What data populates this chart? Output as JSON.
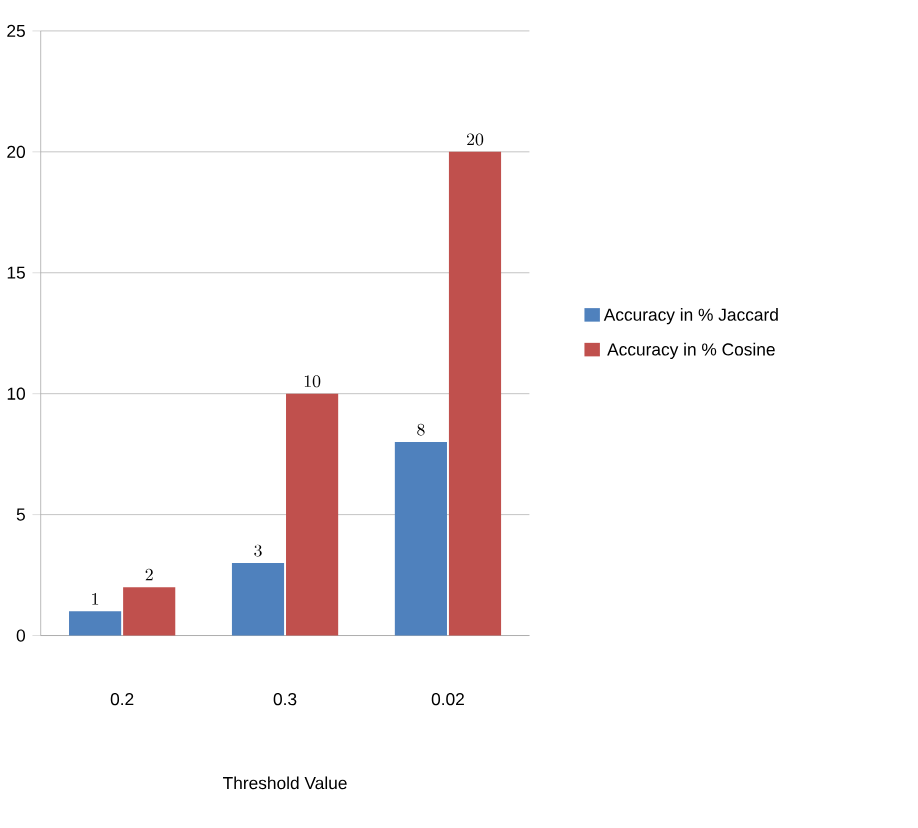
{
  "chart_data": {
    "type": "bar",
    "xlabel": "Threshold Value",
    "categories": [
      "0.2",
      "0.3",
      "0.02"
    ],
    "series": [
      {
        "name": "Accuracy in % Jaccard",
        "color": "#4f81bd",
        "values": [
          1,
          3,
          8
        ]
      },
      {
        "name": "Accuracy in % Cosine",
        "color": "#c0504d",
        "values": [
          2,
          10,
          20
        ]
      }
    ],
    "ylim": [
      0,
      25
    ],
    "yticks": [
      0,
      5,
      10,
      15,
      20,
      25
    ],
    "grid": "y",
    "legend": "right",
    "data_labels": true
  }
}
